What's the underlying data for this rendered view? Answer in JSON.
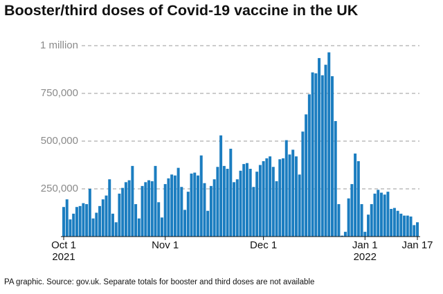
{
  "chart_data": {
    "type": "bar",
    "title": "Booster/third doses of Covid-19 vaccine in the UK",
    "footnote": "PA graphic. Source: gov.uk. Separate totals for booster and third doses are not available",
    "color": "#1b7dc0",
    "ylim": [
      0,
      1000000
    ],
    "yticks": [
      {
        "value": 250000,
        "label": "250,000"
      },
      {
        "value": 500000,
        "label": "500,000"
      },
      {
        "value": 750000,
        "label": "750,000"
      },
      {
        "value": 1000000,
        "label": "1 million"
      }
    ],
    "grid": true,
    "categories": [
      "Oct 1\n2021",
      null,
      null,
      null,
      null,
      null,
      null,
      null,
      null,
      null,
      null,
      null,
      null,
      null,
      null,
      null,
      null,
      null,
      null,
      null,
      null,
      null,
      null,
      null,
      null,
      null,
      null,
      null,
      null,
      null,
      null,
      "Nov 1",
      null,
      null,
      null,
      null,
      null,
      null,
      null,
      null,
      null,
      null,
      null,
      null,
      null,
      null,
      null,
      null,
      null,
      null,
      null,
      null,
      null,
      null,
      null,
      null,
      null,
      null,
      null,
      null,
      null,
      "Dec 1",
      null,
      null,
      null,
      null,
      null,
      null,
      null,
      null,
      null,
      null,
      null,
      null,
      null,
      null,
      null,
      null,
      null,
      null,
      null,
      null,
      null,
      null,
      null,
      null,
      null,
      null,
      null,
      null,
      null,
      null,
      "Jan 1\n2022",
      null,
      null,
      null,
      null,
      null,
      null,
      null,
      null,
      null,
      null,
      null,
      null,
      null,
      null,
      null,
      "Jan 17"
    ],
    "values": [
      155000,
      195000,
      90000,
      120000,
      155000,
      160000,
      175000,
      170000,
      250000,
      95000,
      125000,
      160000,
      195000,
      215000,
      300000,
      120000,
      75000,
      225000,
      255000,
      285000,
      295000,
      370000,
      170000,
      95000,
      265000,
      285000,
      295000,
      290000,
      370000,
      180000,
      100000,
      275000,
      305000,
      325000,
      320000,
      360000,
      260000,
      140000,
      235000,
      330000,
      335000,
      320000,
      425000,
      280000,
      135000,
      265000,
      300000,
      365000,
      530000,
      370000,
      355000,
      460000,
      285000,
      300000,
      345000,
      380000,
      385000,
      355000,
      260000,
      340000,
      375000,
      395000,
      410000,
      420000,
      365000,
      290000,
      405000,
      410000,
      505000,
      430000,
      455000,
      420000,
      325000,
      550000,
      640000,
      745000,
      860000,
      855000,
      935000,
      845000,
      900000,
      965000,
      840000,
      605000,
      170000,
      5000,
      25000,
      200000,
      275000,
      435000,
      395000,
      170000,
      25000,
      115000,
      170000,
      225000,
      245000,
      230000,
      220000,
      235000,
      145000,
      150000,
      135000,
      120000,
      110000,
      110000,
      105000,
      60000,
      75000
    ]
  }
}
